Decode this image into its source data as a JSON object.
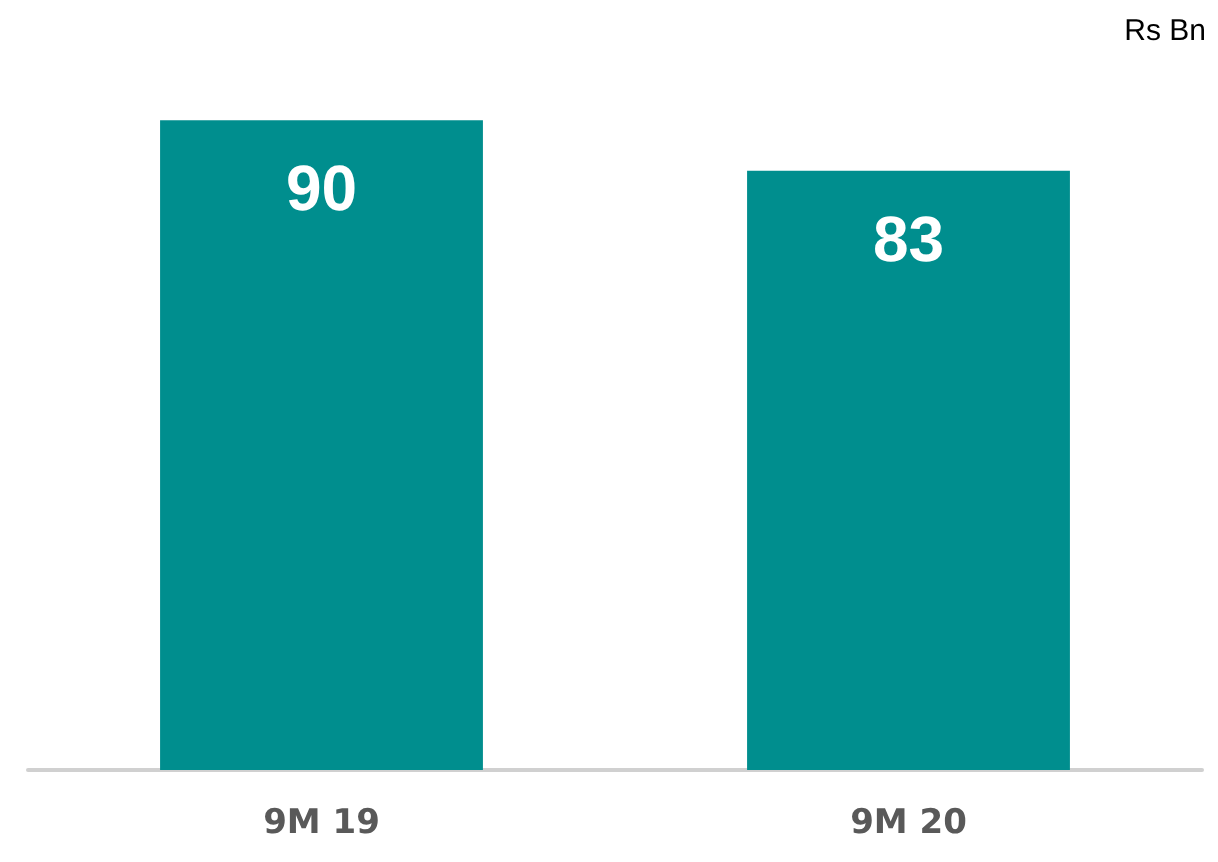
{
  "chart_data": {
    "type": "bar",
    "categories": [
      "9M 19",
      "9M 20"
    ],
    "values": [
      90,
      83
    ],
    "color": "#008e8e",
    "data_labels": true,
    "annotations": [
      "Rs Bn"
    ]
  }
}
